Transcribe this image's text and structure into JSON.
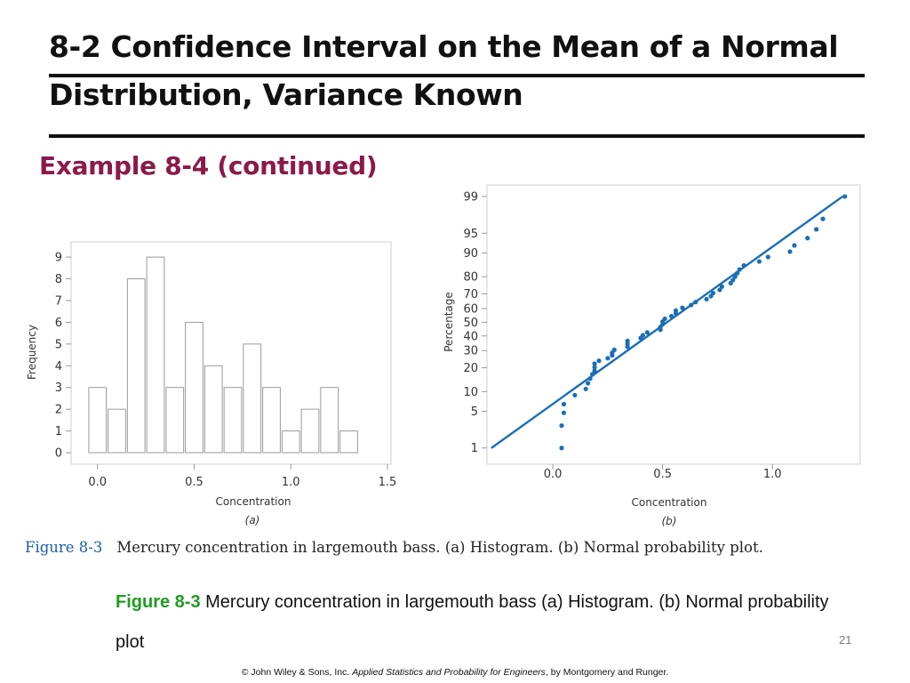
{
  "slide": {
    "title": "8-2 Confidence Interval on the Mean of a Normal Distribution, Variance Known",
    "subtitle": "Example 8-4 (continued)",
    "page_number": "21"
  },
  "figure": {
    "label": "Figure 8-3",
    "text": "Mercury concentration in largemouth bass. (a) Histogram. (b) Normal probability plot."
  },
  "caption": {
    "label": "Figure 8-3",
    "text": " Mercury concentration in largemouth bass (a) Histogram. (b) Normal probability plot"
  },
  "footer": {
    "prefix": "© John Wiley & Sons, Inc.  ",
    "book": "Applied Statistics and Probability for Engineers",
    "suffix": ", by Montgomery and Runger."
  },
  "chart_data": [
    {
      "type": "bar",
      "panel_label": "(a)",
      "xlabel": "Concentration",
      "ylabel": "Frequency",
      "xlim": [
        -0.1,
        1.5
      ],
      "ylim": [
        0,
        9.7
      ],
      "xticks": [
        0.0,
        0.5,
        1.0,
        1.5
      ],
      "xtick_labels": [
        "0.0",
        "0.5",
        "1.0",
        "1.5"
      ],
      "yticks": [
        0,
        1,
        2,
        3,
        4,
        5,
        6,
        7,
        8,
        9
      ],
      "bin_width": 0.1,
      "bin_centers": [
        0.0,
        0.1,
        0.2,
        0.3,
        0.4,
        0.5,
        0.6,
        0.7,
        0.8,
        0.9,
        1.0,
        1.1,
        1.2,
        1.3
      ],
      "values": [
        3,
        2,
        8,
        9,
        3,
        6,
        4,
        3,
        5,
        3,
        1,
        2,
        3,
        1
      ],
      "grid": false
    },
    {
      "type": "scatter",
      "panel_label": "(b)",
      "xlabel": "Concentration",
      "ylabel": "Percentage",
      "xlim": [
        -0.3,
        1.4
      ],
      "xticks": [
        0.0,
        0.5,
        1.0
      ],
      "xtick_labels": [
        "0.0",
        "0.5",
        "1.0"
      ],
      "yscale": "normal probability",
      "yticks": [
        1,
        5,
        10,
        20,
        30,
        40,
        50,
        60,
        70,
        80,
        90,
        95,
        99
      ],
      "ylim": [
        0.6,
        99.3
      ],
      "points": [
        {
          "x": 0.04,
          "y": 1.0
        },
        {
          "x": 0.04,
          "y": 2.8
        },
        {
          "x": 0.05,
          "y": 4.7
        },
        {
          "x": 0.05,
          "y": 6.5
        },
        {
          "x": 0.1,
          "y": 8.9
        },
        {
          "x": 0.15,
          "y": 10.9
        },
        {
          "x": 0.16,
          "y": 13.0
        },
        {
          "x": 0.17,
          "y": 14.9
        },
        {
          "x": 0.18,
          "y": 16.8
        },
        {
          "x": 0.19,
          "y": 18.5
        },
        {
          "x": 0.19,
          "y": 20.3
        },
        {
          "x": 0.19,
          "y": 22.2
        },
        {
          "x": 0.21,
          "y": 23.8
        },
        {
          "x": 0.25,
          "y": 25.3
        },
        {
          "x": 0.27,
          "y": 27.0
        },
        {
          "x": 0.27,
          "y": 28.6
        },
        {
          "x": 0.28,
          "y": 30.5
        },
        {
          "x": 0.34,
          "y": 32.5
        },
        {
          "x": 0.34,
          "y": 34.5
        },
        {
          "x": 0.34,
          "y": 36.5
        },
        {
          "x": 0.4,
          "y": 38.5
        },
        {
          "x": 0.41,
          "y": 40.5
        },
        {
          "x": 0.43,
          "y": 42.5
        },
        {
          "x": 0.49,
          "y": 44.5
        },
        {
          "x": 0.49,
          "y": 46.5
        },
        {
          "x": 0.5,
          "y": 48.5
        },
        {
          "x": 0.5,
          "y": 50.5
        },
        {
          "x": 0.51,
          "y": 52.5
        },
        {
          "x": 0.54,
          "y": 54.5
        },
        {
          "x": 0.56,
          "y": 56.5
        },
        {
          "x": 0.56,
          "y": 58.5
        },
        {
          "x": 0.59,
          "y": 60.5
        },
        {
          "x": 0.63,
          "y": 62.5
        },
        {
          "x": 0.65,
          "y": 64.5
        },
        {
          "x": 0.7,
          "y": 66.5
        },
        {
          "x": 0.72,
          "y": 68.5
        },
        {
          "x": 0.73,
          "y": 70.5
        },
        {
          "x": 0.76,
          "y": 72.5
        },
        {
          "x": 0.77,
          "y": 74.5
        },
        {
          "x": 0.81,
          "y": 76.5
        },
        {
          "x": 0.82,
          "y": 78.2
        },
        {
          "x": 0.83,
          "y": 80.0
        },
        {
          "x": 0.84,
          "y": 81.8
        },
        {
          "x": 0.85,
          "y": 83.5
        },
        {
          "x": 0.87,
          "y": 85.3
        },
        {
          "x": 0.94,
          "y": 86.9
        },
        {
          "x": 0.98,
          "y": 88.6
        },
        {
          "x": 1.08,
          "y": 90.4
        },
        {
          "x": 1.1,
          "y": 92.2
        },
        {
          "x": 1.16,
          "y": 94.0
        },
        {
          "x": 1.2,
          "y": 95.7
        },
        {
          "x": 1.23,
          "y": 97.2
        },
        {
          "x": 1.33,
          "y": 99.0
        }
      ],
      "fit_line": {
        "x": [
          -0.28,
          1.32
        ],
        "y": [
          1.0,
          99.0
        ]
      },
      "grid": false
    }
  ]
}
